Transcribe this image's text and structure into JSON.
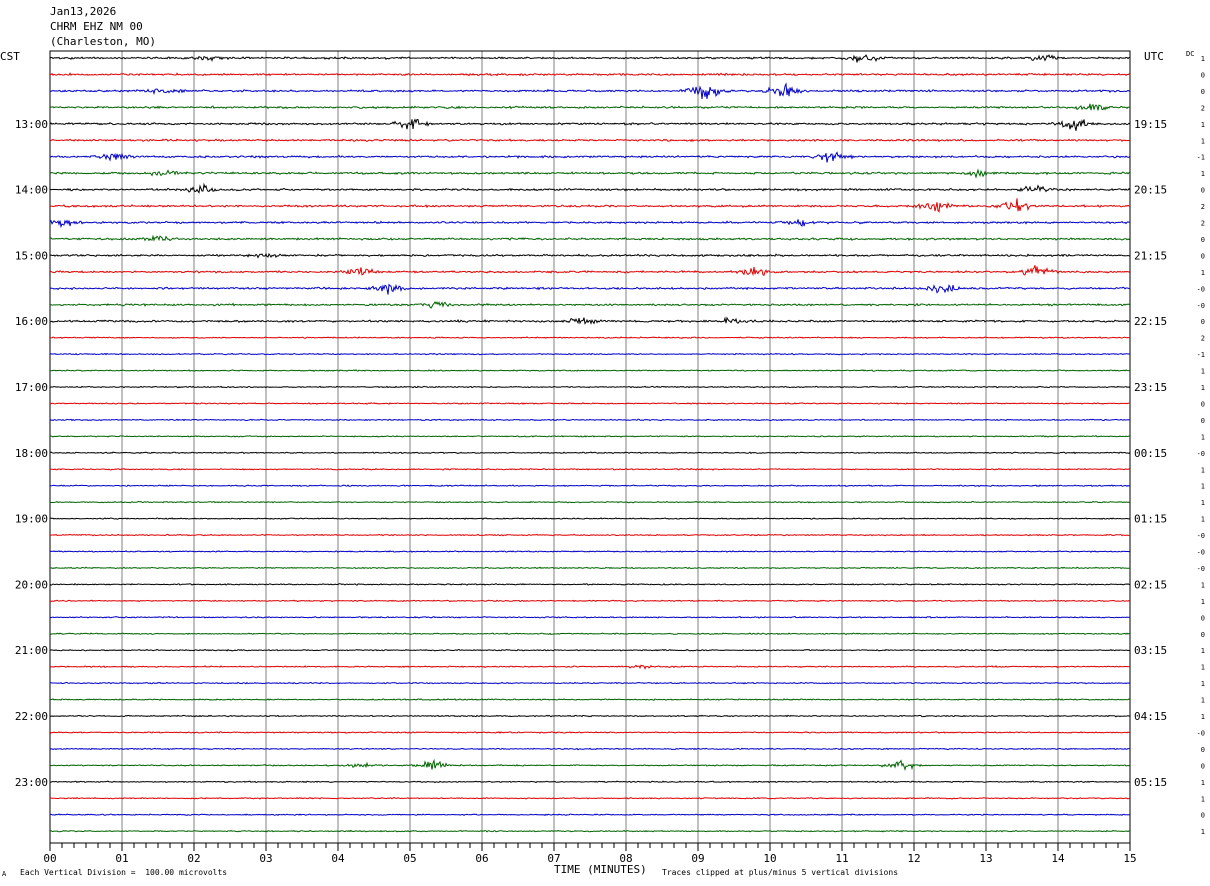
{
  "header": {
    "date": "Jan13,2026",
    "station": "CHRM EHZ NM 00",
    "location": "(Charleston, MO)"
  },
  "labels": {
    "left_tz": "CST",
    "right_tz": "UTC",
    "dc": "DC"
  },
  "footer": {
    "scale_note": "Each Vertical Division =  100.00 microvolts",
    "xaxis_title": "TIME (MINUTES)",
    "clip_note": "Traces clipped at plus/minus 5 vertical divisions",
    "corner_mark": "A"
  },
  "chart_data": {
    "type": "line",
    "title": "",
    "xlabel": "TIME (MINUTES)",
    "xlim": [
      0,
      15
    ],
    "x_ticks": [
      "00",
      "01",
      "02",
      "03",
      "04",
      "05",
      "06",
      "07",
      "08",
      "09",
      "10",
      "11",
      "12",
      "13",
      "14",
      "15"
    ],
    "trace_colors": [
      "#000000",
      "#e00000",
      "#0000c8",
      "#006400"
    ],
    "trace_count": 48,
    "left_hour_labels": [
      "13:00",
      "14:00",
      "15:00",
      "16:00",
      "17:00",
      "18:00",
      "19:00",
      "20:00",
      "21:00",
      "22:00",
      "23:00"
    ],
    "right_hour_labels": [
      "19:15",
      "20:15",
      "21:15",
      "22:15",
      "23:15",
      "00:15",
      "01:15",
      "02:15",
      "03:15",
      "04:15",
      "05:15"
    ],
    "dc_offsets": [
      "1",
      "0",
      "0",
      "2",
      "1",
      "1",
      "-1",
      "1",
      "0",
      "2",
      "2",
      "0",
      "0",
      "1",
      "-0",
      "-0",
      "0",
      "2",
      "-1",
      "1",
      "1",
      "0",
      "0",
      "1",
      "-0",
      "1",
      "1",
      "1",
      "1",
      "-0",
      "-0",
      "-0",
      "1",
      "1",
      "0",
      "0",
      "1",
      "1",
      "1",
      "1",
      "1",
      "-0",
      "0",
      "0",
      "1",
      "1",
      "0",
      "1"
    ],
    "bursts": [
      {
        "trace": 0,
        "at": 2.2,
        "amp": 3
      },
      {
        "trace": 0,
        "at": 11.3,
        "amp": 5
      },
      {
        "trace": 0,
        "at": 13.8,
        "amp": 4
      },
      {
        "trace": 2,
        "at": 1.6,
        "amp": 6
      },
      {
        "trace": 2,
        "at": 9.1,
        "amp": 11
      },
      {
        "trace": 2,
        "at": 10.2,
        "amp": 8
      },
      {
        "trace": 3,
        "at": 14.5,
        "amp": 5
      },
      {
        "trace": 4,
        "at": 5.0,
        "amp": 7
      },
      {
        "trace": 4,
        "at": 14.2,
        "amp": 8
      },
      {
        "trace": 6,
        "at": 0.9,
        "amp": 4
      },
      {
        "trace": 6,
        "at": 10.9,
        "amp": 7
      },
      {
        "trace": 7,
        "at": 1.6,
        "amp": 4
      },
      {
        "trace": 7,
        "at": 12.9,
        "amp": 4
      },
      {
        "trace": 8,
        "at": 2.1,
        "amp": 6
      },
      {
        "trace": 8,
        "at": 13.7,
        "amp": 6
      },
      {
        "trace": 9,
        "at": 12.3,
        "amp": 9
      },
      {
        "trace": 9,
        "at": 13.4,
        "amp": 9
      },
      {
        "trace": 10,
        "at": 0.2,
        "amp": 4
      },
      {
        "trace": 10,
        "at": 10.4,
        "amp": 4
      },
      {
        "trace": 11,
        "at": 1.5,
        "amp": 4
      },
      {
        "trace": 12,
        "at": 3.0,
        "amp": 3
      },
      {
        "trace": 13,
        "at": 4.3,
        "amp": 5
      },
      {
        "trace": 13,
        "at": 9.8,
        "amp": 5
      },
      {
        "trace": 13,
        "at": 13.7,
        "amp": 8
      },
      {
        "trace": 14,
        "at": 4.7,
        "amp": 6
      },
      {
        "trace": 14,
        "at": 12.4,
        "amp": 6
      },
      {
        "trace": 15,
        "at": 5.4,
        "amp": 4
      },
      {
        "trace": 16,
        "at": 7.4,
        "amp": 4
      },
      {
        "trace": 16,
        "at": 9.5,
        "amp": 4
      },
      {
        "trace": 37,
        "at": 8.2,
        "amp": 3
      },
      {
        "trace": 43,
        "at": 4.3,
        "amp": 3
      },
      {
        "trace": 43,
        "at": 5.3,
        "amp": 7
      },
      {
        "trace": 43,
        "at": 11.8,
        "amp": 6
      }
    ]
  }
}
